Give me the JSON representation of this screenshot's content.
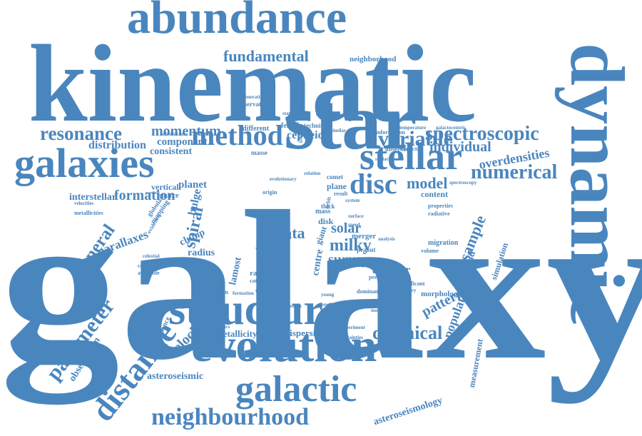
{
  "color": "#4a86be",
  "words": [
    "galaxy",
    "kinematic",
    "star",
    "dynamic",
    "abundance",
    "structure",
    "evolution",
    "galaxies",
    "galactic",
    "stellar",
    "disc",
    "method",
    "neighbourhood",
    "distance",
    "parameter",
    "resonance",
    "spectroscopic",
    "variable",
    "numerical",
    "model",
    "fundamental",
    "neighborhood",
    "individual",
    "chemical",
    "population",
    "pattern",
    "general",
    "momentum",
    "distribution",
    "component",
    "consistent",
    "cepheid",
    "overdensities",
    "formation",
    "interstellar",
    "vertical",
    "planet",
    "spiral",
    "bulge",
    "parallaxes",
    "radius",
    "clump",
    "phase",
    "data",
    "milky",
    "solar",
    "survey",
    "angular",
    "sample",
    "asteroid",
    "simulation",
    "velocity",
    "metallicity",
    "dispersion",
    "asteroseismic",
    "asteroseismology",
    "measurement",
    "observation",
    "dependence",
    "morphology",
    "content",
    "merger",
    "disk",
    "gaia",
    "giant",
    "centre",
    "cluster",
    "radial",
    "wave",
    "neutron",
    "dominant",
    "significant",
    "migration",
    "peanut",
    "thick",
    "plane",
    "comet",
    "orbit",
    "result",
    "origin",
    "mass",
    "masse",
    "feature",
    "technique",
    "statistic",
    "different",
    "observatory",
    "generation",
    "information",
    "observed",
    "spectroscopy",
    "interaction",
    "source",
    "particle",
    "evidence",
    "mapping",
    "globular",
    "metallicities",
    "velocities",
    "transfer",
    "collapsar",
    "available",
    "celestial",
    "speed",
    "system",
    "properties",
    "radiative",
    "analysis",
    "catalog",
    "precise",
    "discovery",
    "volume",
    "uncertainties",
    "substructure",
    "kinematics",
    "experiment",
    "temperature",
    "evolutionary",
    "molecular",
    "archaeology",
    "strength",
    "density",
    "galactocentric",
    "relation",
    "similar",
    "stellar",
    "surface",
    "formation",
    "young",
    "lamost"
  ]
}
